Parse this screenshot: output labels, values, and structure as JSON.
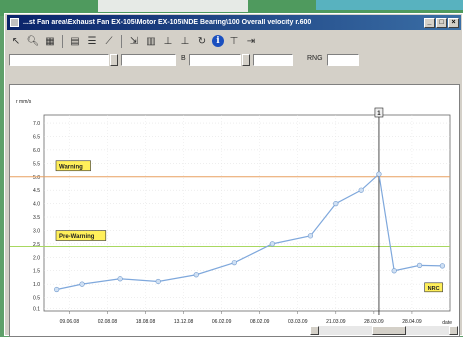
{
  "window": {
    "title": "...st Fan area\\Exhaust Fan EX-105\\Motor EX-105\\NDE Bearing\\100 Overall velocity r.600"
  },
  "toolbar": {
    "icons": [
      "arrow-icon",
      "zoom-icon",
      "grid-icon",
      "cursor-icon",
      "list-icon",
      "trend-icon",
      "range-icon",
      "scale-icon",
      "axis-icon",
      "refresh-icon",
      "info-icon",
      "filter-icon",
      "export-icon"
    ]
  },
  "fields": {
    "f1": "",
    "f2": "",
    "f3_label": "B",
    "f3": "",
    "f4": "",
    "rng_label": "RNG",
    "rng": ""
  },
  "chart_data": {
    "type": "line",
    "ylabel": "r mm/s",
    "xlabel": "date",
    "ylim": [
      0,
      7.3
    ],
    "y_ticks": [
      "0.1",
      "0.5",
      "1.0",
      "1.5",
      "2.0",
      "2.5",
      "3.0",
      "3.5",
      "4.0",
      "4.5",
      "5.0",
      "5.5",
      "6.0",
      "6.5",
      "7.0"
    ],
    "y_tick_values": [
      0.1,
      0.5,
      1.0,
      1.5,
      2.0,
      2.5,
      3.0,
      3.5,
      4.0,
      4.5,
      5.0,
      5.5,
      6.0,
      6.5,
      7.0
    ],
    "x_ticks": [
      "09.06.08",
      "02.08.08",
      "18.08.08",
      "13.12.08",
      "06.02.09",
      "08.02.09",
      "03.03.09",
      "21.03.09",
      "28.03.09",
      "28.04.09"
    ],
    "x_tick_index": [
      1,
      2.5,
      4,
      5.5,
      7,
      8.5,
      10,
      11.5,
      13,
      14.5
    ],
    "series": [
      {
        "points": [
          {
            "i": 0.5,
            "v": 0.8
          },
          {
            "i": 1.5,
            "v": 1.0
          },
          {
            "i": 3.0,
            "v": 1.2
          },
          {
            "i": 4.5,
            "v": 1.1
          },
          {
            "i": 6.0,
            "v": 1.35
          },
          {
            "i": 7.5,
            "v": 1.8
          },
          {
            "i": 9.0,
            "v": 2.5
          },
          {
            "i": 10.5,
            "v": 2.8
          },
          {
            "i": 11.5,
            "v": 4.0
          },
          {
            "i": 12.5,
            "v": 4.5
          },
          {
            "i": 13.2,
            "v": 5.1
          },
          {
            "i": 13.8,
            "v": 1.5
          },
          {
            "i": 14.8,
            "v": 1.7
          },
          {
            "i": 15.7,
            "v": 1.68
          }
        ],
        "color": "#7fa8dc"
      }
    ],
    "thresholds": [
      {
        "label": "Warning",
        "value": 5.0,
        "color": "#e8a060"
      },
      {
        "label": "Pre-Warning",
        "value": 2.4,
        "color": "#a8d860"
      }
    ],
    "cursor": {
      "index": 13.2,
      "label": "1"
    },
    "annotation": {
      "label": "NRC"
    },
    "x_index_range": [
      0,
      16
    ]
  }
}
